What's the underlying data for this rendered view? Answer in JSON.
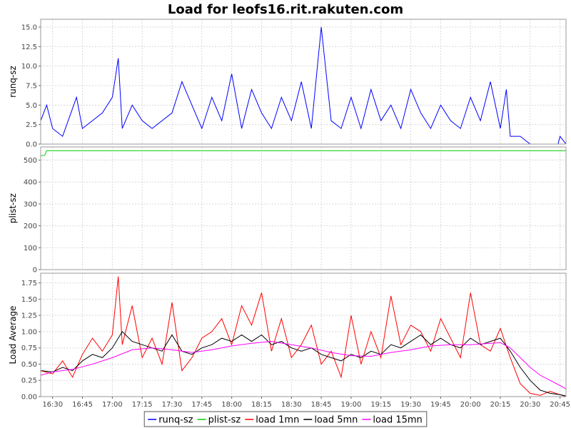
{
  "chart_data": {
    "type": "line",
    "title": "Load for leofs16.rit.rakuten.com",
    "x_ticks": [
      "16:30",
      "16:45",
      "17:00",
      "17:15",
      "17:30",
      "17:45",
      "18:00",
      "18:15",
      "18:30",
      "18:45",
      "19:00",
      "19:15",
      "19:30",
      "19:45",
      "20:00",
      "20:15",
      "20:30",
      "20:45"
    ],
    "x_range": [
      "16:24",
      "20:48"
    ],
    "grid": true,
    "legend_position": "bottom",
    "panels": [
      {
        "ylabel": "runq-sz",
        "ylim": [
          0,
          16
        ],
        "y_ticks": [
          "0.0",
          "2.5",
          "5.0",
          "7.5",
          "10.0",
          "12.5",
          "15.0"
        ],
        "series": [
          {
            "name": "runq-sz",
            "color": "#0000ff",
            "x": [
              "16:24",
              "16:27",
              "16:30",
              "16:35",
              "16:42",
              "16:45",
              "16:55",
              "17:00",
              "17:03",
              "17:05",
              "17:10",
              "17:15",
              "17:20",
              "17:30",
              "17:35",
              "17:45",
              "17:50",
              "17:55",
              "18:00",
              "18:05",
              "18:10",
              "18:15",
              "18:20",
              "18:25",
              "18:30",
              "18:35",
              "18:40",
              "18:45",
              "18:50",
              "18:55",
              "19:00",
              "19:05",
              "19:10",
              "19:15",
              "19:20",
              "19:25",
              "19:30",
              "19:35",
              "19:40",
              "19:45",
              "19:50",
              "19:55",
              "20:00",
              "20:05",
              "20:10",
              "20:15",
              "20:18",
              "20:20",
              "20:25",
              "20:30",
              "20:35",
              "20:40",
              "20:44",
              "20:45",
              "20:48"
            ],
            "y": [
              3,
              5,
              2,
              1,
              6,
              2,
              4,
              6,
              11,
              2,
              5,
              3,
              2,
              4,
              8,
              2,
              6,
              3,
              9,
              2,
              7,
              4,
              2,
              6,
              3,
              8,
              2,
              15,
              3,
              2,
              6,
              2,
              7,
              3,
              5,
              2,
              7,
              4,
              2,
              5,
              3,
              2,
              6,
              3,
              8,
              2,
              7,
              1,
              1,
              0,
              0,
              0,
              0,
              1,
              0
            ]
          }
        ]
      },
      {
        "ylabel": "plist-sz",
        "ylim": [
          0,
          560
        ],
        "y_ticks": [
          "0",
          "100",
          "200",
          "300",
          "400",
          "500"
        ],
        "series": [
          {
            "name": "plist-sz",
            "color": "#00cc00",
            "x": [
              "16:24",
              "16:26",
              "16:27",
              "20:48"
            ],
            "y": [
              520,
              522,
              543,
              543
            ]
          }
        ]
      },
      {
        "ylabel": "Load Average",
        "ylim": [
          0,
          1.9
        ],
        "y_ticks": [
          "0.00",
          "0.25",
          "0.50",
          "0.75",
          "1.00",
          "1.25",
          "1.50",
          "1.75"
        ],
        "series": [
          {
            "name": "load 1mn",
            "color": "#ff0000",
            "x": [
              "16:24",
              "16:30",
              "16:35",
              "16:40",
              "16:45",
              "16:50",
              "16:55",
              "17:00",
              "17:03",
              "17:05",
              "17:10",
              "17:15",
              "17:20",
              "17:25",
              "17:30",
              "17:35",
              "17:40",
              "17:45",
              "17:50",
              "17:55",
              "18:00",
              "18:05",
              "18:10",
              "18:15",
              "18:20",
              "18:25",
              "18:30",
              "18:35",
              "18:40",
              "18:45",
              "18:50",
              "18:55",
              "19:00",
              "19:05",
              "19:10",
              "19:15",
              "19:20",
              "19:25",
              "19:30",
              "19:35",
              "19:40",
              "19:45",
              "19:50",
              "19:55",
              "20:00",
              "20:05",
              "20:10",
              "20:15",
              "20:20",
              "20:25",
              "20:30",
              "20:35",
              "20:40",
              "20:45",
              "20:48"
            ],
            "y": [
              0.4,
              0.35,
              0.55,
              0.3,
              0.65,
              0.9,
              0.7,
              0.95,
              1.85,
              0.8,
              1.4,
              0.6,
              0.9,
              0.5,
              1.45,
              0.4,
              0.6,
              0.9,
              1.0,
              1.2,
              0.8,
              1.4,
              1.1,
              1.6,
              0.7,
              1.2,
              0.6,
              0.8,
              1.1,
              0.5,
              0.7,
              0.3,
              1.25,
              0.5,
              1.0,
              0.6,
              1.55,
              0.8,
              1.1,
              1.0,
              0.7,
              1.2,
              0.9,
              0.6,
              1.6,
              0.8,
              0.7,
              1.05,
              0.6,
              0.2,
              0.05,
              0.02,
              0.08,
              0.03,
              0.0
            ]
          },
          {
            "name": "load 5mn",
            "color": "#000000",
            "x": [
              "16:24",
              "16:30",
              "16:35",
              "16:40",
              "16:45",
              "16:50",
              "16:55",
              "17:00",
              "17:05",
              "17:10",
              "17:15",
              "17:20",
              "17:25",
              "17:30",
              "17:35",
              "17:40",
              "17:45",
              "17:50",
              "17:55",
              "18:00",
              "18:05",
              "18:10",
              "18:15",
              "18:20",
              "18:25",
              "18:30",
              "18:35",
              "18:40",
              "18:45",
              "18:50",
              "18:55",
              "19:00",
              "19:05",
              "19:10",
              "19:15",
              "19:20",
              "19:25",
              "19:30",
              "19:35",
              "19:40",
              "19:45",
              "19:50",
              "19:55",
              "20:00",
              "20:05",
              "20:10",
              "20:15",
              "20:20",
              "20:25",
              "20:30",
              "20:35",
              "20:40",
              "20:45",
              "20:48"
            ],
            "y": [
              0.4,
              0.38,
              0.45,
              0.4,
              0.55,
              0.65,
              0.6,
              0.75,
              1.0,
              0.85,
              0.8,
              0.75,
              0.7,
              0.95,
              0.7,
              0.65,
              0.75,
              0.8,
              0.9,
              0.85,
              0.95,
              0.85,
              0.95,
              0.8,
              0.85,
              0.75,
              0.7,
              0.75,
              0.65,
              0.6,
              0.55,
              0.65,
              0.6,
              0.7,
              0.65,
              0.8,
              0.75,
              0.85,
              0.95,
              0.8,
              0.9,
              0.8,
              0.75,
              0.9,
              0.8,
              0.85,
              0.9,
              0.7,
              0.45,
              0.25,
              0.1,
              0.05,
              0.03,
              0.01
            ]
          },
          {
            "name": "load 15mn",
            "color": "#ff00ff",
            "x": [
              "16:24",
              "16:30",
              "16:40",
              "16:50",
              "17:00",
              "17:10",
              "17:20",
              "17:30",
              "17:40",
              "17:50",
              "18:00",
              "18:10",
              "18:20",
              "18:30",
              "18:40",
              "18:50",
              "19:00",
              "19:10",
              "19:20",
              "19:30",
              "19:40",
              "19:50",
              "20:00",
              "20:10",
              "20:15",
              "20:20",
              "20:25",
              "20:30",
              "20:35",
              "20:40",
              "20:45",
              "20:48"
            ],
            "y": [
              0.33,
              0.38,
              0.42,
              0.5,
              0.6,
              0.72,
              0.75,
              0.72,
              0.68,
              0.72,
              0.78,
              0.82,
              0.85,
              0.8,
              0.75,
              0.68,
              0.63,
              0.62,
              0.68,
              0.72,
              0.78,
              0.8,
              0.8,
              0.82,
              0.83,
              0.75,
              0.6,
              0.45,
              0.33,
              0.25,
              0.17,
              0.12
            ]
          }
        ]
      }
    ]
  }
}
